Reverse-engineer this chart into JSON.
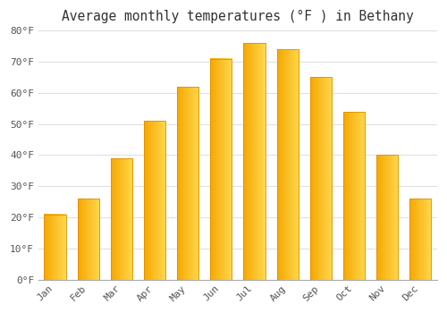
{
  "title": "Average monthly temperatures (°F ) in Bethany",
  "months": [
    "Jan",
    "Feb",
    "Mar",
    "Apr",
    "May",
    "Jun",
    "Jul",
    "Aug",
    "Sep",
    "Oct",
    "Nov",
    "Dec"
  ],
  "values": [
    21,
    26,
    39,
    51,
    62,
    71,
    76,
    74,
    65,
    54,
    40,
    26
  ],
  "bar_color_left": "#F5A800",
  "bar_color_right": "#FFD84D",
  "bar_edge_color": "#E09000",
  "ylim": [
    0,
    80
  ],
  "yticks": [
    0,
    10,
    20,
    30,
    40,
    50,
    60,
    70,
    80
  ],
  "ytick_labels": [
    "0°F",
    "10°F",
    "20°F",
    "30°F",
    "40°F",
    "50°F",
    "60°F",
    "70°F",
    "80°F"
  ],
  "background_color": "#ffffff",
  "plot_bg_color": "#ffffff",
  "grid_color": "#e0e0e0",
  "title_fontsize": 10.5,
  "tick_fontsize": 8,
  "font_family": "monospace",
  "bar_width": 0.65
}
